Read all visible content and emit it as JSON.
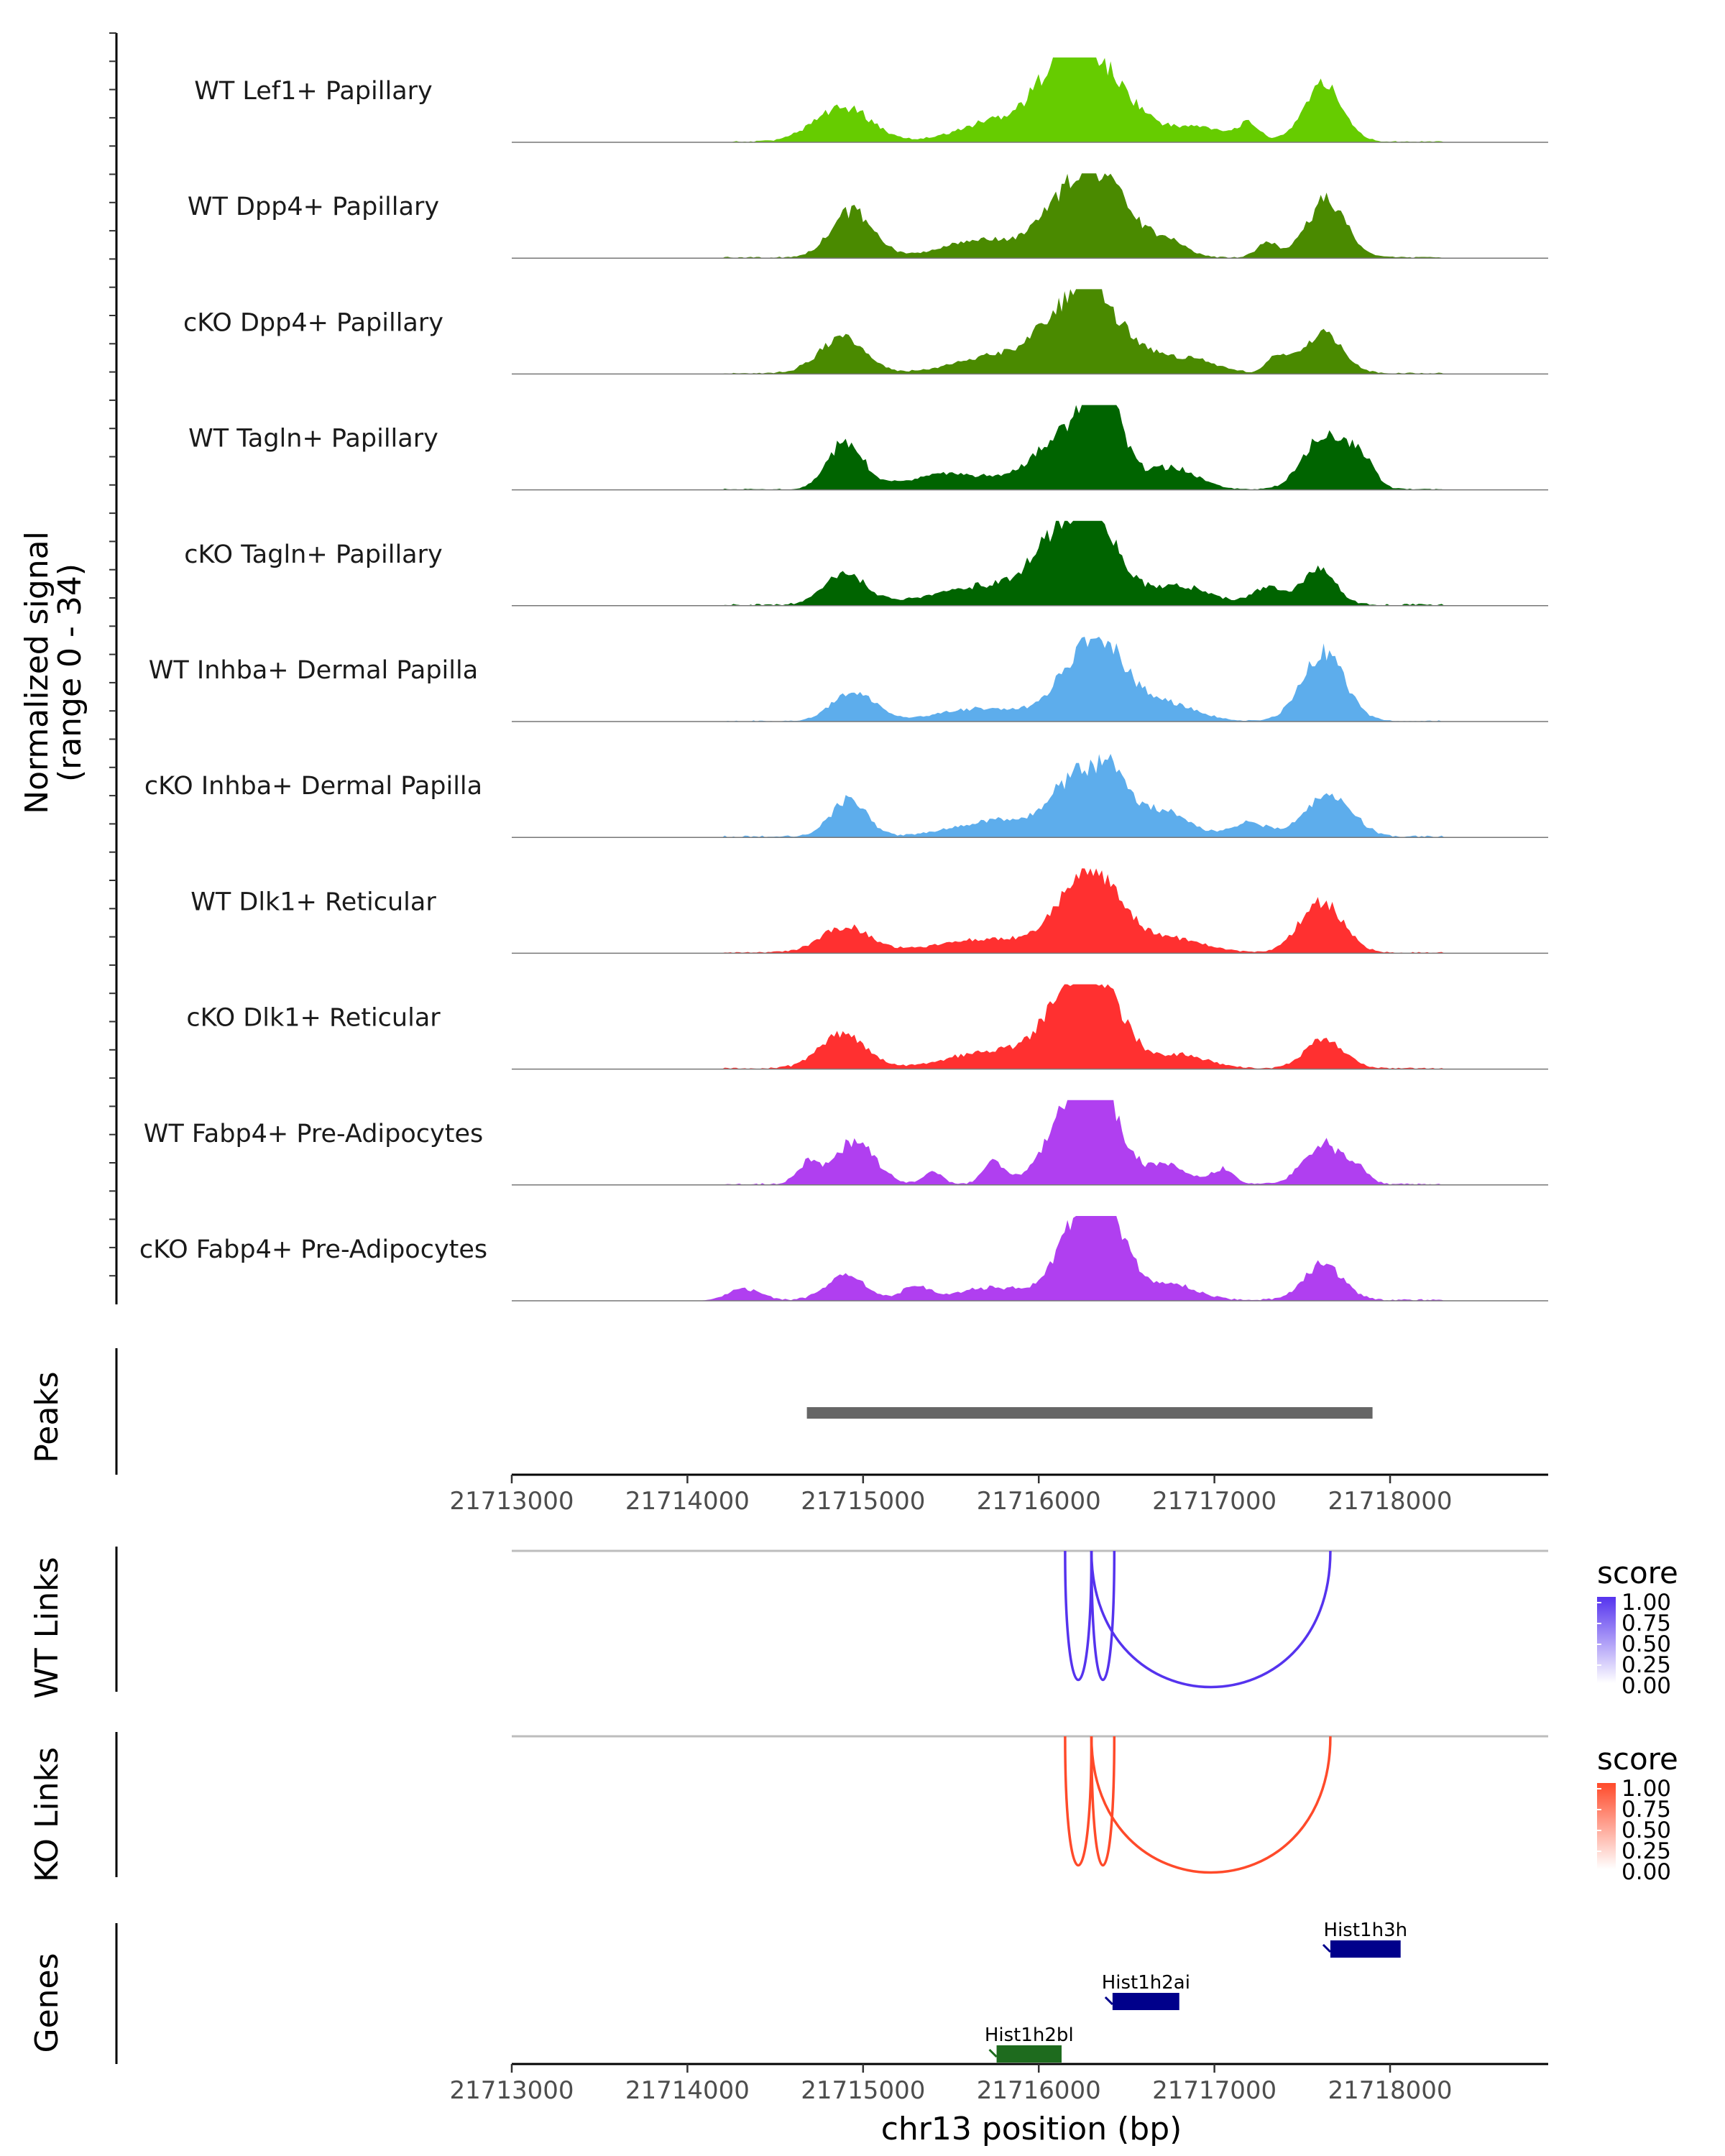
{
  "chart_data": {
    "type": "area",
    "title": "",
    "region": "chr13",
    "xlabel": "chr13 position (bp)",
    "xlim": [
      21713000,
      21718900
    ],
    "xticks": [
      21713000,
      21714000,
      21715000,
      21716000,
      21717000,
      21718000
    ],
    "xtick_labels": [
      "21713000",
      "21714000",
      "21715000",
      "21716000",
      "21717000",
      "21718000"
    ],
    "ylabel_line1": "Normalized signal",
    "ylabel_line2": "(range 0 - 34)",
    "ylim": [
      0,
      34
    ],
    "coverage_tracks": [
      {
        "name": "WT Lef1+ Papillary",
        "color": "#66CC00",
        "bgscale": 0.12,
        "peaks": [
          [
            21714850,
            150,
            0.33
          ],
          [
            21715000,
            120,
            0.12
          ],
          [
            21715850,
            250,
            0.3
          ],
          [
            21716300,
            150,
            0.88
          ],
          [
            21716100,
            120,
            0.5
          ],
          [
            21716550,
            120,
            0.22
          ],
          [
            21716900,
            180,
            0.18
          ],
          [
            21717200,
            60,
            0.18
          ],
          [
            21717620,
            110,
            0.68
          ]
        ]
      },
      {
        "name": "WT Dpp4+ Papillary",
        "color": "#4A8A00",
        "bgscale": 0.14,
        "peaks": [
          [
            21714940,
            120,
            0.55
          ],
          [
            21715700,
            230,
            0.22
          ],
          [
            21716300,
            130,
            0.95
          ],
          [
            21716080,
            110,
            0.4
          ],
          [
            21716500,
            100,
            0.3
          ],
          [
            21716720,
            110,
            0.22
          ],
          [
            21717300,
            60,
            0.18
          ],
          [
            21717640,
            110,
            0.68
          ]
        ]
      },
      {
        "name": "cKO Dpp4+ Papillary",
        "color": "#4A8A00",
        "bgscale": 0.16,
        "peaks": [
          [
            21714880,
            130,
            0.42
          ],
          [
            21715800,
            250,
            0.22
          ],
          [
            21716300,
            120,
            0.98
          ],
          [
            21716080,
            120,
            0.4
          ],
          [
            21716550,
            110,
            0.28
          ],
          [
            21716850,
            150,
            0.18
          ],
          [
            21717360,
            60,
            0.2
          ],
          [
            21717620,
            110,
            0.48
          ]
        ]
      },
      {
        "name": "WT Tagln+ Papillary",
        "color": "#006400",
        "bgscale": 0.12,
        "peaks": [
          [
            21714900,
            100,
            0.55
          ],
          [
            21715500,
            250,
            0.18
          ],
          [
            21716150,
            180,
            0.58
          ],
          [
            21716360,
            110,
            1.0
          ],
          [
            21716760,
            140,
            0.26
          ],
          [
            21717610,
            110,
            0.62
          ],
          [
            21717820,
            80,
            0.4
          ]
        ]
      },
      {
        "name": "cKO Tagln+ Papillary",
        "color": "#006400",
        "bgscale": 0.2,
        "peaks": [
          [
            21714900,
            120,
            0.35
          ],
          [
            21715700,
            300,
            0.22
          ],
          [
            21716300,
            150,
            0.95
          ],
          [
            21716080,
            150,
            0.45
          ],
          [
            21716800,
            180,
            0.22
          ],
          [
            21717300,
            80,
            0.2
          ],
          [
            21717590,
            100,
            0.42
          ]
        ]
      },
      {
        "name": "WT Inhba+ Dermal Papilla",
        "color": "#5DADEC",
        "bgscale": 0.12,
        "peaks": [
          [
            21714950,
            120,
            0.35
          ],
          [
            21715700,
            250,
            0.15
          ],
          [
            21716320,
            170,
            1.0
          ],
          [
            21716750,
            160,
            0.18
          ],
          [
            21717620,
            120,
            0.8
          ]
        ]
      },
      {
        "name": "cKO Inhba+ Dermal Papilla",
        "color": "#5DADEC",
        "bgscale": 0.18,
        "peaks": [
          [
            21714920,
            100,
            0.45
          ],
          [
            21715800,
            250,
            0.2
          ],
          [
            21716180,
            120,
            0.55
          ],
          [
            21716400,
            110,
            0.72
          ],
          [
            21716700,
            150,
            0.3
          ],
          [
            21717200,
            100,
            0.16
          ],
          [
            21717650,
            130,
            0.52
          ]
        ]
      },
      {
        "name": "WT Dlk1+ Reticular",
        "color": "#FF3030",
        "bgscale": 0.14,
        "peaks": [
          [
            21714900,
            140,
            0.3
          ],
          [
            21715700,
            280,
            0.16
          ],
          [
            21716300,
            170,
            0.98
          ],
          [
            21716780,
            170,
            0.16
          ],
          [
            21717610,
            120,
            0.62
          ]
        ]
      },
      {
        "name": "cKO Dlk1+ Reticular",
        "color": "#FF3030",
        "bgscale": 0.16,
        "peaks": [
          [
            21714880,
            130,
            0.4
          ],
          [
            21715800,
            280,
            0.22
          ],
          [
            21716340,
            140,
            1.0
          ],
          [
            21716120,
            120,
            0.5
          ],
          [
            21716800,
            160,
            0.16
          ],
          [
            21717630,
            110,
            0.35
          ]
        ]
      },
      {
        "name": "WT Fabp4+ Pre-Adipocytes",
        "color": "#B03FF0",
        "bgscale": 0.18,
        "peaks": [
          [
            21714680,
            60,
            0.22
          ],
          [
            21714950,
            120,
            0.5
          ],
          [
            21715400,
            50,
            0.16
          ],
          [
            21715740,
            60,
            0.25
          ],
          [
            21716180,
            150,
            0.65
          ],
          [
            21716330,
            130,
            1.0
          ],
          [
            21716730,
            120,
            0.22
          ],
          [
            21717050,
            60,
            0.18
          ],
          [
            21717620,
            110,
            0.48
          ],
          [
            21717820,
            60,
            0.15
          ]
        ]
      },
      {
        "name": "cKO Fabp4+ Pre-Adipocytes",
        "color": "#B03FF0",
        "bgscale": 0.18,
        "peaks": [
          [
            21714320,
            90,
            0.14
          ],
          [
            21714900,
            110,
            0.28
          ],
          [
            21715300,
            80,
            0.15
          ],
          [
            21715750,
            200,
            0.15
          ],
          [
            21716200,
            120,
            0.65
          ],
          [
            21716380,
            120,
            1.0
          ],
          [
            21716750,
            150,
            0.18
          ],
          [
            21717620,
            110,
            0.42
          ]
        ]
      }
    ],
    "peaks_track": {
      "label": "Peaks",
      "color": "#666666",
      "ranges": [
        [
          21714680,
          21717900
        ]
      ]
    },
    "link_tracks": [
      {
        "label": "WT Links",
        "legend_title": "score",
        "legend_ticks": [
          "1.00",
          "0.75",
          "0.50",
          "0.25",
          "0.00"
        ],
        "color": "#5533EE",
        "links": [
          [
            21716150,
            21716300,
            1.0
          ],
          [
            21716300,
            21716430,
            1.0
          ],
          [
            21716300,
            21717660,
            1.0
          ]
        ]
      },
      {
        "label": "KO Links",
        "legend_title": "score",
        "legend_ticks": [
          "1.00",
          "0.75",
          "0.50",
          "0.25",
          "0.00"
        ],
        "color": "#FF4A2A",
        "links": [
          [
            21716150,
            21716300,
            1.0
          ],
          [
            21716300,
            21716430,
            1.0
          ],
          [
            21716300,
            21717660,
            1.0
          ]
        ]
      }
    ],
    "genes_track": {
      "label": "Genes",
      "genes": [
        {
          "name": "Hist1h3h",
          "start": 21717660,
          "end": 21718060,
          "row": 0,
          "color": "#00008B"
        },
        {
          "name": "Hist1h2ai",
          "start": 21716420,
          "end": 21716800,
          "row": 1,
          "color": "#00008B"
        },
        {
          "name": "Hist1h2bl",
          "start": 21715760,
          "end": 21716130,
          "row": 2,
          "color": "#1E6B1E"
        }
      ]
    }
  }
}
